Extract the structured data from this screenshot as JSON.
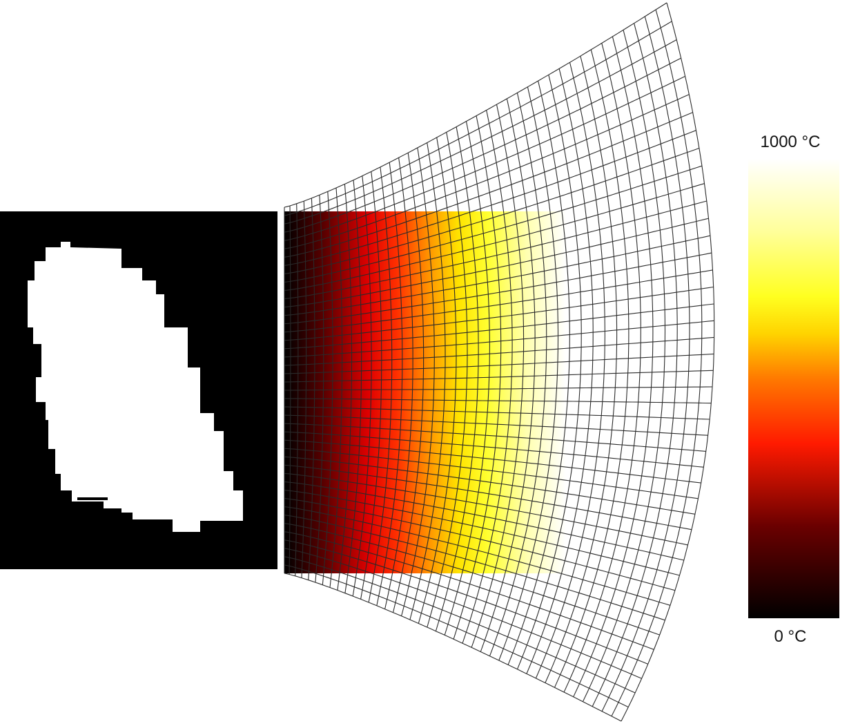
{
  "figure": {
    "left_panel": "binary-mask",
    "middle_panel": "deformed-mesh-temperature-map",
    "right_panel": "colorbar"
  },
  "colorbar": {
    "max_label": "1000 °C",
    "min_label": "0 °C",
    "max_value": 1000,
    "min_value": 0,
    "unit": "°C",
    "stops": [
      {
        "t": 0.0,
        "color": "#000000"
      },
      {
        "t": 0.2,
        "color": "#6a0000"
      },
      {
        "t": 0.38,
        "color": "#ff1a00"
      },
      {
        "t": 0.52,
        "color": "#ff7800"
      },
      {
        "t": 0.62,
        "color": "#ffd400"
      },
      {
        "t": 0.7,
        "color": "#ffff20"
      },
      {
        "t": 0.84,
        "color": "#ffff99"
      },
      {
        "t": 1.0,
        "color": "#ffffff"
      }
    ]
  },
  "mesh": {
    "line_color": "#2a2a2a",
    "columns": 40,
    "rows": 44
  }
}
